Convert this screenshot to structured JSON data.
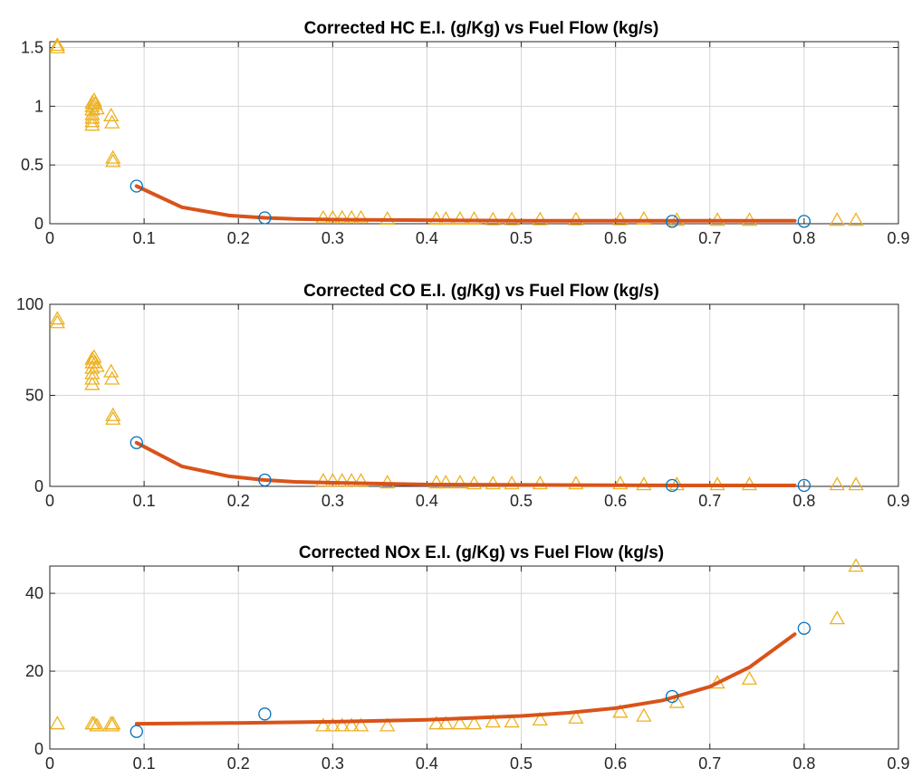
{
  "colors": {
    "fit_line": "#D95319",
    "circle_marker": "#0072BD",
    "triangle_marker": "#EDB120",
    "grid": "#d6d6d6",
    "axis": "#262626"
  },
  "chart_data": [
    {
      "type": "scatter",
      "title": "Corrected HC E.I. (g/Kg) vs Fuel Flow (kg/s)",
      "xlabel": "",
      "ylabel": "",
      "xlim": [
        0,
        0.9
      ],
      "ylim": [
        0,
        1.55
      ],
      "xticks": [
        0,
        0.1,
        0.2,
        0.3,
        0.4,
        0.5,
        0.6,
        0.7,
        0.8,
        0.9
      ],
      "yticks": [
        0,
        0.5,
        1,
        1.5
      ],
      "grid": true,
      "series": [
        {
          "marker": "triangle",
          "color": "#EDB120",
          "x": [
            0.008,
            0.008,
            0.045,
            0.045,
            0.045,
            0.045,
            0.045,
            0.045,
            0.045,
            0.047,
            0.048,
            0.05,
            0.065,
            0.066,
            0.067,
            0.067,
            0.29,
            0.3,
            0.31,
            0.32,
            0.33,
            0.358,
            0.41,
            0.42,
            0.435,
            0.45,
            0.47,
            0.49,
            0.52,
            0.558,
            0.605,
            0.63,
            0.665,
            0.708,
            0.742,
            0.835,
            0.855
          ],
          "y": [
            1.52,
            1.5,
            1.0,
            0.97,
            0.93,
            0.9,
            0.87,
            0.84,
            1.03,
            1.05,
            1.02,
            0.98,
            0.92,
            0.86,
            0.56,
            0.53,
            0.05,
            0.05,
            0.05,
            0.05,
            0.05,
            0.04,
            0.04,
            0.04,
            0.04,
            0.04,
            0.035,
            0.035,
            0.035,
            0.035,
            0.035,
            0.04,
            0.03,
            0.03,
            0.03,
            0.03,
            0.03
          ]
        },
        {
          "marker": "circle",
          "color": "#0072BD",
          "x": [
            0.092,
            0.228,
            0.66,
            0.8
          ],
          "y": [
            0.32,
            0.05,
            0.02,
            0.02
          ]
        },
        {
          "marker": "line",
          "color": "#D95319",
          "x": [
            0.092,
            0.14,
            0.19,
            0.228,
            0.26,
            0.3,
            0.4,
            0.5,
            0.6,
            0.7,
            0.79
          ],
          "y": [
            0.32,
            0.14,
            0.07,
            0.05,
            0.04,
            0.035,
            0.03,
            0.025,
            0.025,
            0.025,
            0.025
          ]
        }
      ]
    },
    {
      "type": "scatter",
      "title": "Corrected CO E.I. (g/Kg) vs Fuel Flow (kg/s)",
      "xlabel": "",
      "ylabel": "",
      "xlim": [
        0,
        0.9
      ],
      "ylim": [
        0,
        100
      ],
      "xticks": [
        0,
        0.1,
        0.2,
        0.3,
        0.4,
        0.5,
        0.6,
        0.7,
        0.8,
        0.9
      ],
      "yticks": [
        0,
        50,
        100
      ],
      "grid": true,
      "series": [
        {
          "marker": "triangle",
          "color": "#EDB120",
          "x": [
            0.008,
            0.008,
            0.045,
            0.045,
            0.045,
            0.045,
            0.045,
            0.045,
            0.047,
            0.048,
            0.05,
            0.065,
            0.066,
            0.067,
            0.067,
            0.29,
            0.3,
            0.31,
            0.32,
            0.33,
            0.358,
            0.41,
            0.42,
            0.435,
            0.45,
            0.47,
            0.49,
            0.52,
            0.558,
            0.605,
            0.63,
            0.665,
            0.708,
            0.742,
            0.835,
            0.855
          ],
          "y": [
            92,
            90,
            68,
            65,
            62,
            59,
            56,
            70,
            71,
            68,
            66,
            63,
            59,
            39,
            37,
            3,
            3,
            3,
            3,
            3,
            2,
            2,
            2,
            2,
            1.5,
            1.5,
            1.5,
            1.5,
            1.5,
            1.5,
            1,
            1,
            1,
            1,
            1,
            1
          ]
        },
        {
          "marker": "circle",
          "color": "#0072BD",
          "x": [
            0.092,
            0.228,
            0.66,
            0.8
          ],
          "y": [
            24,
            3.5,
            0.5,
            0.5
          ]
        },
        {
          "marker": "line",
          "color": "#D95319",
          "x": [
            0.092,
            0.14,
            0.19,
            0.228,
            0.26,
            0.3,
            0.4,
            0.5,
            0.6,
            0.7,
            0.79
          ],
          "y": [
            24,
            11,
            5.5,
            3.5,
            2.5,
            2,
            1,
            0.8,
            0.6,
            0.5,
            0.5
          ]
        }
      ]
    },
    {
      "type": "scatter",
      "title": "Corrected NOx E.I. (g/Kg) vs Fuel Flow (kg/s)",
      "xlabel": "",
      "ylabel": "",
      "xlim": [
        0,
        0.9
      ],
      "ylim": [
        0,
        47
      ],
      "xticks": [
        0,
        0.1,
        0.2,
        0.3,
        0.4,
        0.5,
        0.6,
        0.7,
        0.8,
        0.9
      ],
      "yticks": [
        0,
        20,
        40
      ],
      "grid": true,
      "series": [
        {
          "marker": "triangle",
          "color": "#EDB120",
          "x": [
            0.008,
            0.045,
            0.047,
            0.05,
            0.065,
            0.066,
            0.067,
            0.29,
            0.3,
            0.31,
            0.32,
            0.33,
            0.358,
            0.41,
            0.42,
            0.435,
            0.45,
            0.47,
            0.49,
            0.52,
            0.558,
            0.605,
            0.63,
            0.665,
            0.708,
            0.742,
            0.835,
            0.855
          ],
          "y": [
            6.5,
            6.5,
            6.5,
            6,
            6.5,
            6,
            6.5,
            6,
            6,
            6,
            6,
            6,
            6,
            6.5,
            6.5,
            6.5,
            6.5,
            7,
            7,
            7.5,
            8,
            9.5,
            8.5,
            12,
            17,
            18,
            33.5,
            47
          ]
        },
        {
          "marker": "circle",
          "color": "#0072BD",
          "x": [
            0.092,
            0.228,
            0.66,
            0.8
          ],
          "y": [
            4.5,
            9,
            13.5,
            31
          ]
        },
        {
          "marker": "line",
          "color": "#D95319",
          "x": [
            0.092,
            0.2,
            0.3,
            0.4,
            0.5,
            0.55,
            0.6,
            0.65,
            0.7,
            0.742,
            0.79
          ],
          "y": [
            6.5,
            6.7,
            7,
            7.5,
            8.5,
            9.3,
            10.5,
            12.5,
            16,
            21,
            29.5
          ]
        }
      ]
    }
  ]
}
